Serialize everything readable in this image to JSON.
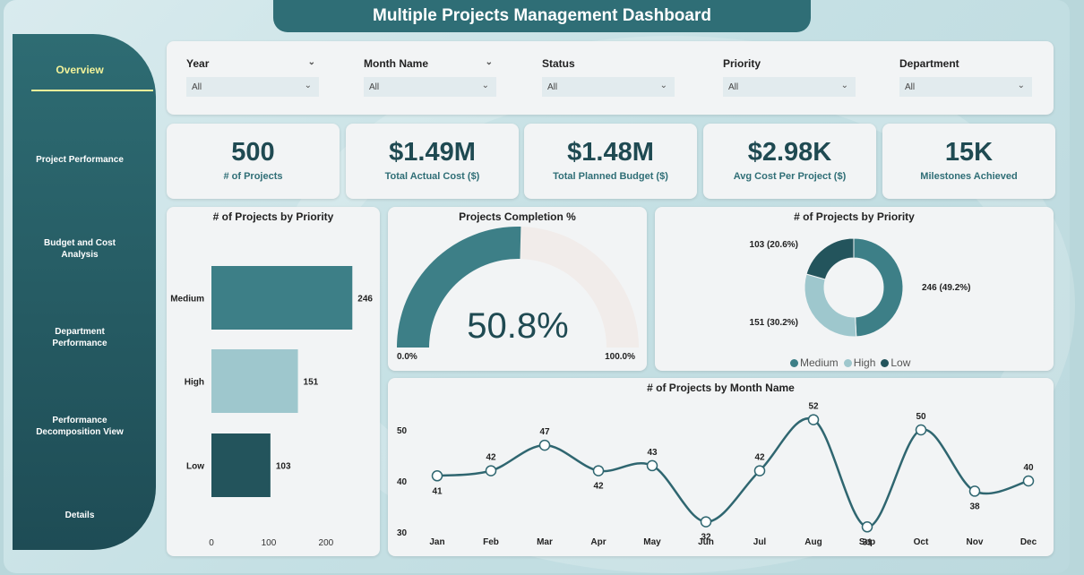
{
  "title": "Multiple Projects Management Dashboard",
  "sidebar": {
    "items": [
      {
        "label": "Overview",
        "active": true
      },
      {
        "label": "Project Performance"
      },
      {
        "label": "Budget and Cost Analysis"
      },
      {
        "label": "Department Performance"
      },
      {
        "label": "Performance Decomposition View"
      },
      {
        "label": "Details"
      }
    ]
  },
  "filters": [
    {
      "label": "Year",
      "value": "All"
    },
    {
      "label": "Month Name",
      "value": "All"
    },
    {
      "label": "Status",
      "value": "All"
    },
    {
      "label": "Priority",
      "value": "All"
    },
    {
      "label": "Department",
      "value": "All"
    }
  ],
  "kpis": [
    {
      "value": "500",
      "label": "# of Projects"
    },
    {
      "value": "$1.49M",
      "label": "Total Actual Cost ($)"
    },
    {
      "value": "$1.48M",
      "label": "Total Planned Budget ($)"
    },
    {
      "value": "$2.98K",
      "label": "Avg Cost Per Project ($)"
    },
    {
      "value": "15K",
      "label": "Milestones Achieved"
    }
  ],
  "colors": {
    "medium": "#3d7f87",
    "high": "#9ec7cd",
    "low": "#23545c",
    "accent": "#2f6e76"
  },
  "chart_data": [
    {
      "type": "bar",
      "title": "# of Projects by Priority",
      "orientation": "horizontal",
      "categories": [
        "Medium",
        "High",
        "Low"
      ],
      "values": [
        246,
        151,
        103
      ],
      "xticks": [
        "0",
        "100",
        "200"
      ],
      "xlim": [
        0,
        250
      ]
    },
    {
      "type": "gauge",
      "title": "Projects Completion %",
      "value": 50.8,
      "display": "50.8%",
      "min_label": "0.0%",
      "max_label": "100.0%"
    },
    {
      "type": "pie",
      "title": "# of Projects by Priority",
      "donut": true,
      "categories": [
        "Medium",
        "High",
        "Low"
      ],
      "values": [
        246,
        151,
        103
      ],
      "labels": [
        "246 (49.2%)",
        "151 (30.2%)",
        "103 (20.6%)"
      ],
      "legend": "bottom"
    },
    {
      "type": "line",
      "title": "# of Projects by Month Name",
      "categories": [
        "Jan",
        "Feb",
        "Mar",
        "Apr",
        "May",
        "Jun",
        "Jul",
        "Aug",
        "Sep",
        "Oct",
        "Nov",
        "Dec"
      ],
      "values": [
        41,
        42,
        47,
        42,
        43,
        32,
        42,
        52,
        31,
        50,
        38,
        40
      ],
      "yticks": [
        "50",
        "40",
        "30"
      ],
      "ylim": [
        30,
        50
      ]
    }
  ]
}
